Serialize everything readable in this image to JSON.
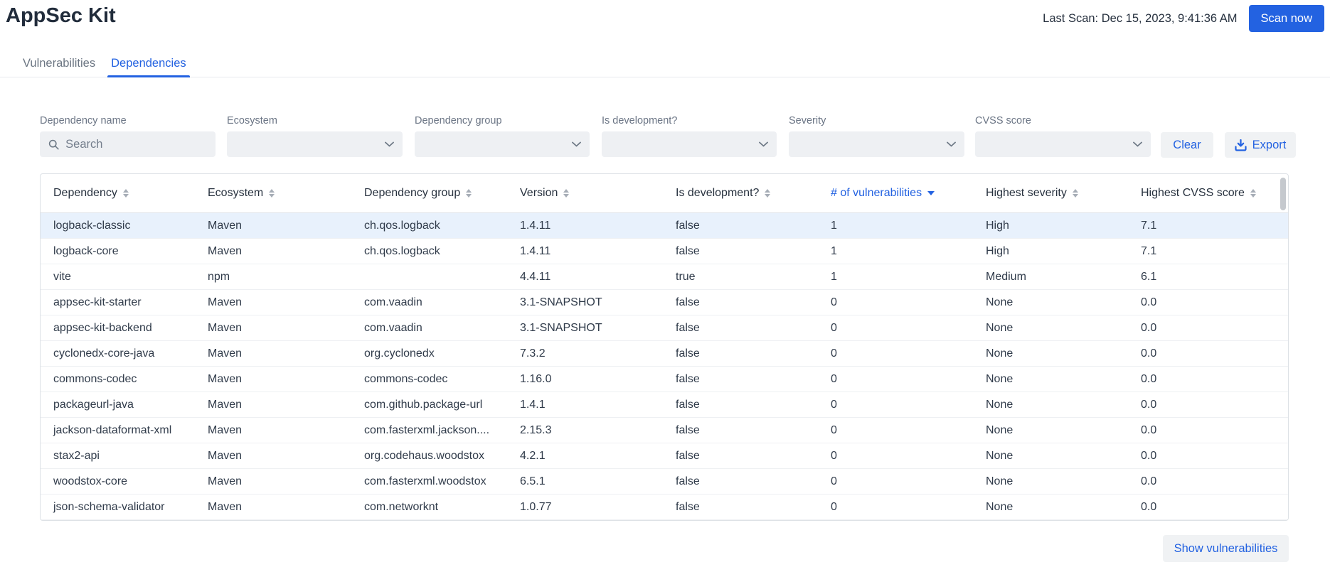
{
  "colors": {
    "accent": "#2362e1"
  },
  "header": {
    "title": "AppSec Kit",
    "last_scan": "Last Scan: Dec 15, 2023, 9:41:36 AM",
    "scan_button": "Scan now"
  },
  "tabs": [
    {
      "label": "Vulnerabilities",
      "active": false
    },
    {
      "label": "Dependencies",
      "active": true
    }
  ],
  "filters": {
    "fields": [
      {
        "label": "Dependency name",
        "type": "search",
        "placeholder": "Search",
        "value": ""
      },
      {
        "label": "Ecosystem",
        "type": "select",
        "value": ""
      },
      {
        "label": "Dependency group",
        "type": "select",
        "value": ""
      },
      {
        "label": "Is development?",
        "type": "select",
        "value": ""
      },
      {
        "label": "Severity",
        "type": "select",
        "value": ""
      },
      {
        "label": "CVSS score",
        "type": "select",
        "value": ""
      }
    ],
    "clear_button": "Clear",
    "export_button": "Export"
  },
  "table": {
    "columns": [
      {
        "label": "Dependency",
        "sort": null
      },
      {
        "label": "Ecosystem",
        "sort": null
      },
      {
        "label": "Dependency group",
        "sort": null
      },
      {
        "label": "Version",
        "sort": null
      },
      {
        "label": "Is development?",
        "sort": null
      },
      {
        "label": "# of vulnerabilities",
        "sort": "desc"
      },
      {
        "label": "Highest severity",
        "sort": null
      },
      {
        "label": "Highest CVSS score",
        "sort": null
      }
    ],
    "rows": [
      {
        "dependency": "logback-classic",
        "ecosystem": "Maven",
        "group": "ch.qos.logback",
        "version": "1.4.11",
        "is_development": "false",
        "vulnerabilities": "1",
        "severity": "High",
        "cvss": "7.1",
        "selected": true
      },
      {
        "dependency": "logback-core",
        "ecosystem": "Maven",
        "group": "ch.qos.logback",
        "version": "1.4.11",
        "is_development": "false",
        "vulnerabilities": "1",
        "severity": "High",
        "cvss": "7.1",
        "selected": false
      },
      {
        "dependency": "vite",
        "ecosystem": "npm",
        "group": "",
        "version": "4.4.11",
        "is_development": "true",
        "vulnerabilities": "1",
        "severity": "Medium",
        "cvss": "6.1",
        "selected": false
      },
      {
        "dependency": "appsec-kit-starter",
        "ecosystem": "Maven",
        "group": "com.vaadin",
        "version": "3.1-SNAPSHOT",
        "is_development": "false",
        "vulnerabilities": "0",
        "severity": "None",
        "cvss": "0.0",
        "selected": false
      },
      {
        "dependency": "appsec-kit-backend",
        "ecosystem": "Maven",
        "group": "com.vaadin",
        "version": "3.1-SNAPSHOT",
        "is_development": "false",
        "vulnerabilities": "0",
        "severity": "None",
        "cvss": "0.0",
        "selected": false
      },
      {
        "dependency": "cyclonedx-core-java",
        "ecosystem": "Maven",
        "group": "org.cyclonedx",
        "version": "7.3.2",
        "is_development": "false",
        "vulnerabilities": "0",
        "severity": "None",
        "cvss": "0.0",
        "selected": false
      },
      {
        "dependency": "commons-codec",
        "ecosystem": "Maven",
        "group": "commons-codec",
        "version": "1.16.0",
        "is_development": "false",
        "vulnerabilities": "0",
        "severity": "None",
        "cvss": "0.0",
        "selected": false
      },
      {
        "dependency": "packageurl-java",
        "ecosystem": "Maven",
        "group": "com.github.package-url",
        "version": "1.4.1",
        "is_development": "false",
        "vulnerabilities": "0",
        "severity": "None",
        "cvss": "0.0",
        "selected": false
      },
      {
        "dependency": "jackson-dataformat-xml",
        "ecosystem": "Maven",
        "group": "com.fasterxml.jackson....",
        "version": "2.15.3",
        "is_development": "false",
        "vulnerabilities": "0",
        "severity": "None",
        "cvss": "0.0",
        "selected": false
      },
      {
        "dependency": "stax2-api",
        "ecosystem": "Maven",
        "group": "org.codehaus.woodstox",
        "version": "4.2.1",
        "is_development": "false",
        "vulnerabilities": "0",
        "severity": "None",
        "cvss": "0.0",
        "selected": false
      },
      {
        "dependency": "woodstox-core",
        "ecosystem": "Maven",
        "group": "com.fasterxml.woodstox",
        "version": "6.5.1",
        "is_development": "false",
        "vulnerabilities": "0",
        "severity": "None",
        "cvss": "0.0",
        "selected": false
      },
      {
        "dependency": "json-schema-validator",
        "ecosystem": "Maven",
        "group": "com.networknt",
        "version": "1.0.77",
        "is_development": "false",
        "vulnerabilities": "0",
        "severity": "None",
        "cvss": "0.0",
        "selected": false
      }
    ]
  },
  "footer": {
    "show_vulnerabilities_button": "Show vulnerabilities"
  }
}
